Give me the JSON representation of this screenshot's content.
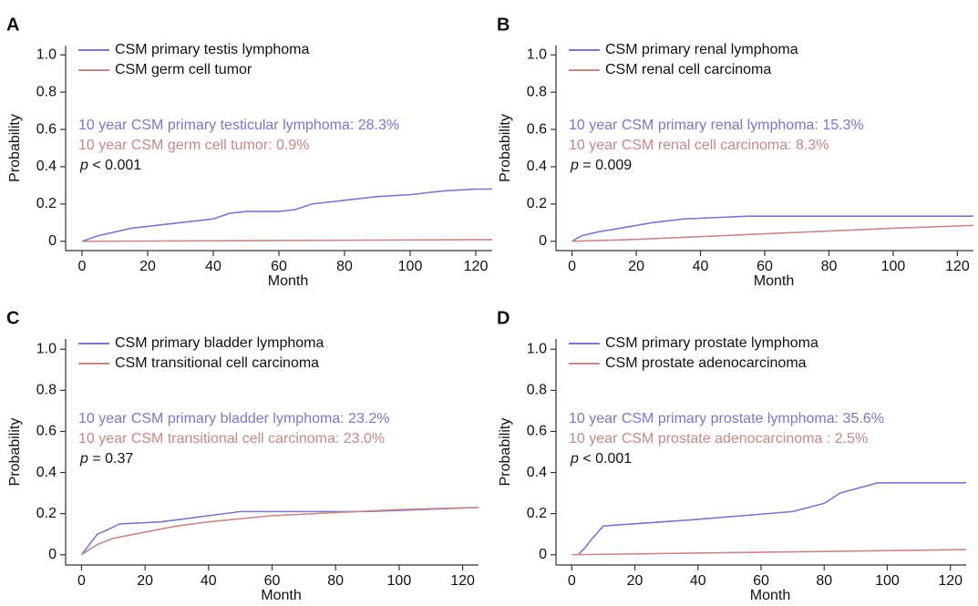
{
  "chart_data": [
    {
      "type": "line",
      "panel": "A",
      "xlabel": "Month",
      "ylabel": "Probability",
      "xlim": [
        -5,
        125
      ],
      "ylim": [
        -0.05,
        1.05
      ],
      "xticks": [
        0,
        20,
        40,
        60,
        80,
        100,
        120
      ],
      "yticks": [
        0,
        0.2,
        0.4,
        0.6,
        0.8,
        {
          "value": 1,
          "label": "1.0"
        }
      ],
      "series": [
        {
          "name": "CSM primary testis lymphoma",
          "color": "#7b78c8",
          "x": [
            0,
            5,
            10,
            15,
            20,
            30,
            40,
            45,
            50,
            60,
            65,
            70,
            80,
            90,
            100,
            110,
            120,
            125
          ],
          "values": [
            0,
            0.03,
            0.05,
            0.07,
            0.08,
            0.1,
            0.12,
            0.15,
            0.16,
            0.16,
            0.17,
            0.2,
            0.22,
            0.24,
            0.25,
            0.27,
            0.28,
            0.28
          ]
        },
        {
          "name": "CSM germ cell tumor",
          "color": "#c48a88",
          "x": [
            0,
            60,
            125
          ],
          "values": [
            0,
            0.004,
            0.009
          ]
        }
      ],
      "annotations": [
        {
          "text": "10 year CSM primary testicular lymphoma: 28.3%",
          "color": "#7b78c8"
        },
        {
          "text": "10 year CSM germ cell tumor: 0.9%",
          "color": "#c48a88"
        }
      ],
      "stat_symbol": "p",
      "stat_text": " < 0.001"
    },
    {
      "type": "line",
      "panel": "B",
      "xlabel": "Month",
      "ylabel": "Probability",
      "xlim": [
        -5,
        125
      ],
      "ylim": [
        -0.05,
        1.05
      ],
      "xticks": [
        0,
        20,
        40,
        60,
        80,
        100,
        120
      ],
      "yticks": [
        0,
        0.2,
        0.4,
        0.6,
        0.8,
        {
          "value": 1,
          "label": "1.0"
        }
      ],
      "series": [
        {
          "name": "CSM primary renal lymphoma",
          "color": "#7b78c8",
          "x": [
            0,
            3,
            8,
            15,
            25,
            35,
            55,
            125
          ],
          "values": [
            0,
            0.03,
            0.05,
            0.07,
            0.1,
            0.12,
            0.135,
            0.135
          ]
        },
        {
          "name": "CSM renal cell carcinoma",
          "color": "#c48a88",
          "x": [
            0,
            20,
            40,
            60,
            80,
            100,
            125
          ],
          "values": [
            0,
            0.01,
            0.025,
            0.04,
            0.055,
            0.07,
            0.085
          ]
        }
      ],
      "annotations": [
        {
          "text": "10 year CSM primary renal lymphoma: 15.3%",
          "color": "#7b78c8"
        },
        {
          "text": "10 year CSM renal cell carcinoma: 8.3%",
          "color": "#c48a88"
        }
      ],
      "stat_symbol": "p",
      "stat_text": " = 0.009"
    },
    {
      "type": "line",
      "panel": "C",
      "xlabel": "Month",
      "ylabel": "Probability",
      "xlim": [
        -5,
        125
      ],
      "ylim": [
        -0.05,
        1.05
      ],
      "xticks": [
        0,
        20,
        40,
        60,
        80,
        100,
        120
      ],
      "yticks": [
        0,
        0.2,
        0.4,
        0.6,
        0.8,
        {
          "value": 1,
          "label": "1.0"
        }
      ],
      "series": [
        {
          "name": "CSM primary bladder lymphoma",
          "color": "#7b78c8",
          "x": [
            0,
            3,
            5,
            8,
            12,
            25,
            35,
            50,
            90,
            125
          ],
          "values": [
            0,
            0.06,
            0.1,
            0.12,
            0.15,
            0.16,
            0.18,
            0.21,
            0.21,
            0.23
          ]
        },
        {
          "name": "CSM transitional cell carcinoma",
          "color": "#c48a88",
          "x": [
            0,
            5,
            10,
            20,
            30,
            40,
            60,
            80,
            100,
            125
          ],
          "values": [
            0,
            0.05,
            0.08,
            0.11,
            0.14,
            0.16,
            0.19,
            0.205,
            0.22,
            0.23
          ]
        }
      ],
      "annotations": [
        {
          "text": "10 year CSM primary bladder lymphoma: 23.2%",
          "color": "#7b78c8"
        },
        {
          "text": "10 year CSM transitional cell carcinoma: 23.0%",
          "color": "#c48a88"
        }
      ],
      "stat_symbol": "p",
      "stat_text": " = 0.37"
    },
    {
      "type": "line",
      "panel": "D",
      "xlabel": "Month",
      "ylabel": "Probability",
      "xlim": [
        -5,
        125
      ],
      "ylim": [
        -0.05,
        1.05
      ],
      "xticks": [
        0,
        20,
        40,
        60,
        80,
        100,
        120
      ],
      "yticks": [
        0,
        0.2,
        0.4,
        0.6,
        0.8,
        {
          "value": 1,
          "label": "1.0"
        }
      ],
      "series": [
        {
          "name": "CSM primary prostate lymphoma",
          "color": "#7b78c8",
          "x": [
            2,
            4,
            6,
            10,
            38,
            70,
            80,
            85,
            97,
            125
          ],
          "values": [
            0,
            0.03,
            0.07,
            0.14,
            0.17,
            0.21,
            0.25,
            0.3,
            0.35,
            0.35
          ]
        },
        {
          "name": "CSM prostate adenocarcinoma",
          "color": "#c48a88",
          "x": [
            0,
            125
          ],
          "values": [
            0,
            0.025
          ]
        }
      ],
      "annotations": [
        {
          "text": "10 year CSM primary prostate lymphoma: 35.6%",
          "color": "#7b78c8"
        },
        {
          "text": "10 year CSM prostate adenocarcinoma : 2.5%",
          "color": "#c48a88"
        }
      ],
      "stat_symbol": "p",
      "stat_text": " < 0.001"
    }
  ]
}
